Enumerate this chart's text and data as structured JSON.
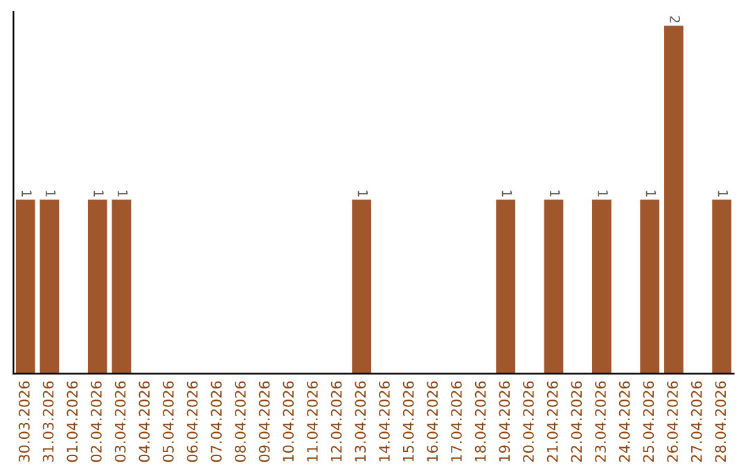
{
  "chart_data": {
    "type": "bar",
    "categories": [
      "30.03.2026",
      "31.03.2026",
      "01.04.2026",
      "02.04.2026",
      "03.04.2026",
      "04.04.2026",
      "05.04.2026",
      "06.04.2026",
      "07.04.2026",
      "08.04.2026",
      "09.04.2026",
      "10.04.2026",
      "11.04.2026",
      "12.04.2026",
      "13.04.2026",
      "14.04.2026",
      "15.04.2026",
      "16.04.2026",
      "17.04.2026",
      "18.04.2026",
      "19.04.2026",
      "20.04.2026",
      "21.04.2026",
      "22.04.2026",
      "23.04.2026",
      "24.04.2026",
      "25.04.2026",
      "26.04.2026",
      "27.04.2026",
      "28.04.2026"
    ],
    "values": [
      1,
      1,
      0,
      1,
      1,
      0,
      0,
      0,
      0,
      0,
      0,
      0,
      0,
      0,
      1,
      0,
      0,
      0,
      0,
      0,
      1,
      0,
      1,
      0,
      1,
      0,
      1,
      2,
      0,
      1
    ],
    "value_labels": [
      "1",
      "1",
      null,
      "1",
      "1",
      null,
      null,
      null,
      null,
      null,
      null,
      null,
      null,
      null,
      "1",
      null,
      null,
      null,
      null,
      null,
      "1",
      null,
      "1",
      null,
      "1",
      null,
      "1",
      "2",
      null,
      "1"
    ],
    "color": "#a0572b",
    "tick_labels": "x",
    "grid": false,
    "legend": false
  }
}
